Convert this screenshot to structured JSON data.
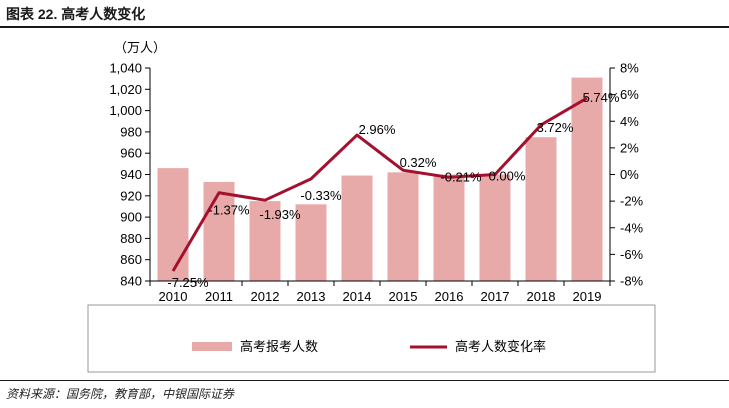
{
  "figure": {
    "title": "图表 22. 高考人数变化",
    "source": "资料来源：国务院，教育部，中银国际证券"
  },
  "chart_data": {
    "type": "bar",
    "title": "",
    "xlabel": "",
    "ylabel": "",
    "y_unit_label": "（万人）",
    "categories": [
      "2010",
      "2011",
      "2012",
      "2013",
      "2014",
      "2015",
      "2016",
      "2017",
      "2018",
      "2019"
    ],
    "ylim": [
      840,
      1040
    ],
    "y_ticks": [
      840,
      860,
      880,
      900,
      920,
      940,
      960,
      980,
      1000,
      1020,
      1040
    ],
    "y_tick_labels": [
      "840",
      "860",
      "880",
      "900",
      "920",
      "940",
      "960",
      "980",
      "1,000",
      "1,020",
      "1,040"
    ],
    "y2lim": [
      -8,
      8
    ],
    "y2_ticks": [
      -8,
      -6,
      -4,
      -2,
      0,
      2,
      4,
      6,
      8
    ],
    "y2_tick_labels": [
      "-8%",
      "-6%",
      "-4%",
      "-2%",
      "0%",
      "2%",
      "4%",
      "6%",
      "8%"
    ],
    "series": [
      {
        "name": "高考报考人数",
        "kind": "bar",
        "axis": "left",
        "color": "#e8a9a9",
        "values": [
          946,
          933,
          915,
          912,
          939,
          942,
          940,
          940,
          975,
          1031
        ]
      },
      {
        "name": "高考人数变化率",
        "kind": "line",
        "axis": "right",
        "color": "#a3112e",
        "values": [
          -7.25,
          -1.37,
          -1.93,
          -0.33,
          2.96,
          0.32,
          -0.21,
          0.0,
          3.72,
          5.74
        ],
        "labels": [
          "-7.25%",
          "-1.37%",
          "-1.93%",
          "-0.33%",
          "2.96%",
          "0.32%",
          "-0.21%",
          "0.00%",
          "3.72%",
          "5.74%"
        ]
      }
    ],
    "legend_position": "bottom"
  }
}
